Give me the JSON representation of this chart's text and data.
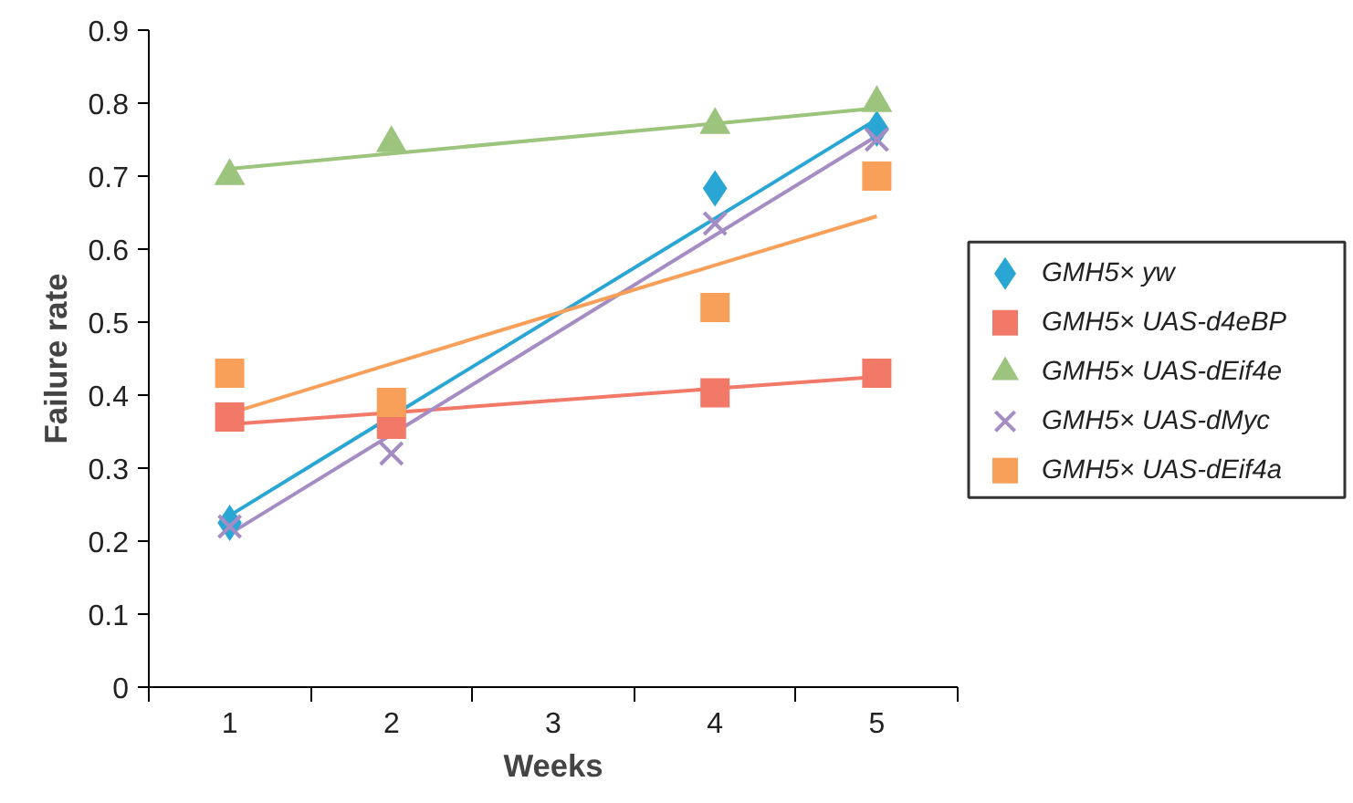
{
  "chart_data": {
    "type": "scatter",
    "xlabel": "Weeks",
    "ylabel": "Failure rate",
    "xlim": [
      0.5,
      5.5
    ],
    "xticks": [
      1,
      2,
      3,
      4,
      5
    ],
    "ylim": [
      0,
      0.9
    ],
    "yticks": [
      0,
      0.1,
      0.2,
      0.3,
      0.4,
      0.5,
      0.6,
      0.7,
      0.8,
      0.9
    ],
    "grid": false,
    "legend": "right",
    "x": [
      1,
      2,
      4,
      5
    ],
    "series": [
      {
        "name": "GMH5× yw",
        "color": "#2aa6d4",
        "marker": "diamond",
        "values": [
          0.225,
          null,
          0.683,
          0.765
        ]
      },
      {
        "name": "GMH5× UAS-d4eBP",
        "color": "#f27868",
        "marker": "square",
        "values": [
          0.37,
          0.36,
          0.403,
          0.43
        ]
      },
      {
        "name": "GMH5× UAS-dEif4e",
        "color": "#9cc47c",
        "marker": "triangle",
        "values": [
          0.7,
          0.745,
          0.77,
          0.8
        ]
      },
      {
        "name": "GMH5× UAS-dMyc",
        "color": "#a58dc4",
        "marker": "cross",
        "values": [
          0.22,
          0.32,
          0.635,
          0.75
        ]
      },
      {
        "name": "GMH5× UAS-dEif4a",
        "color": "#f8a05a",
        "marker": "square",
        "values": [
          0.43,
          0.39,
          0.52,
          0.7
        ]
      },
      {
        "type": "line",
        "color": "#2aa6d4",
        "values": [
          0.235,
          0.371,
          0.642,
          0.778
        ]
      },
      {
        "type": "line",
        "color": "#f27868",
        "values": [
          0.36,
          0.376,
          0.409,
          0.425
        ]
      },
      {
        "type": "line",
        "color": "#9cc47c",
        "values": [
          0.71,
          0.731,
          0.772,
          0.793
        ]
      },
      {
        "type": "line",
        "color": "#a58dc4",
        "values": [
          0.21,
          0.346,
          0.619,
          0.755
        ]
      },
      {
        "type": "line",
        "color": "#f8a05a",
        "values": [
          0.375,
          0.443,
          0.578,
          0.645
        ]
      }
    ]
  }
}
